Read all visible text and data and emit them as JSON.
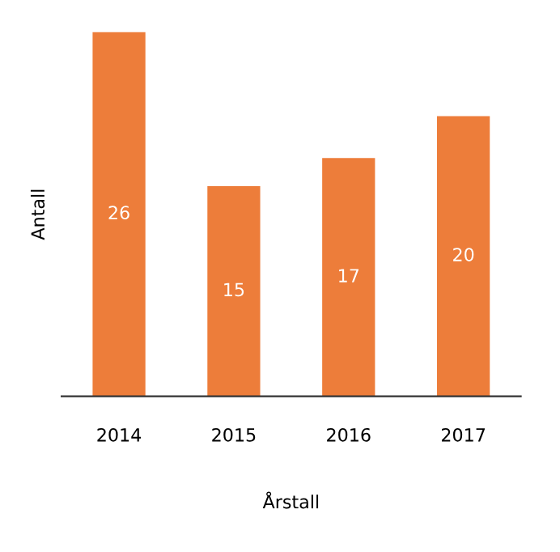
{
  "chart_data": {
    "type": "bar",
    "xlabel": "Årstall",
    "ylabel": "Antall",
    "categories": [
      "2014",
      "2015",
      "2016",
      "2017"
    ],
    "values": [
      26,
      15,
      17,
      20
    ],
    "color": "#ed7d3a",
    "data_labels": true,
    "grid": false,
    "legend": false
  }
}
